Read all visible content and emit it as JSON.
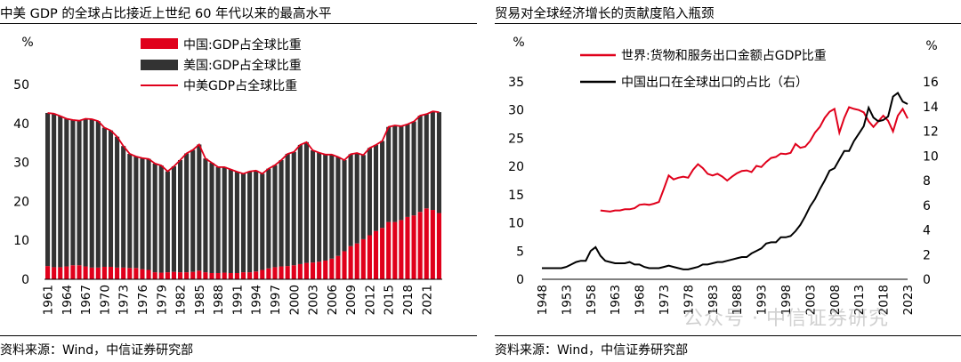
{
  "watermark": "公众号 · 中信证券研究",
  "chart_data": [
    {
      "type": "bar",
      "title": "中美 GDP 的全球占比接近上世纪 60 年代以来的最高水平",
      "source": "资料来源：Wind，中信证券研究部",
      "ylabel": "%",
      "ylim": [
        0,
        50
      ],
      "yticks": [
        0,
        10,
        20,
        30,
        40,
        50
      ],
      "xticks": [
        "1961",
        "1964",
        "1967",
        "1970",
        "1973",
        "1976",
        "1979",
        "1982",
        "1985",
        "1988",
        "1991",
        "1994",
        "1997",
        "2000",
        "2003",
        "2006",
        "2009",
        "2012",
        "2015",
        "2018",
        "2021"
      ],
      "legend_position": "top-right",
      "colors": {
        "china": "#e0001b",
        "usa": "#333333",
        "sum": "#e0001b"
      },
      "categories": [
        1961,
        1962,
        1963,
        1964,
        1965,
        1966,
        1967,
        1968,
        1969,
        1970,
        1971,
        1972,
        1973,
        1974,
        1975,
        1976,
        1977,
        1978,
        1979,
        1980,
        1981,
        1982,
        1983,
        1984,
        1985,
        1986,
        1987,
        1988,
        1989,
        1990,
        1991,
        1992,
        1993,
        1994,
        1995,
        1996,
        1997,
        1998,
        1999,
        2000,
        2001,
        2002,
        2003,
        2004,
        2005,
        2006,
        2007,
        2008,
        2009,
        2010,
        2011,
        2012,
        2013,
        2014,
        2015,
        2016,
        2017,
        2018,
        2019,
        2020,
        2021,
        2022,
        2023
      ],
      "series": [
        {
          "name": "中国:GDP占全球比重",
          "kind": "bar",
          "values": [
            3.4,
            3.1,
            3.1,
            3.3,
            3.6,
            3.6,
            3.3,
            3.0,
            3.0,
            3.2,
            3.2,
            3.0,
            3.0,
            2.9,
            2.9,
            2.6,
            2.4,
            1.8,
            1.7,
            1.8,
            1.9,
            1.8,
            1.8,
            1.9,
            2.2,
            1.8,
            1.6,
            1.6,
            1.7,
            1.6,
            1.6,
            1.8,
            1.8,
            2.0,
            2.4,
            2.8,
            3.1,
            3.3,
            3.4,
            3.6,
            3.9,
            4.2,
            4.3,
            4.5,
            4.8,
            5.3,
            6.0,
            7.2,
            8.5,
            9.2,
            10.3,
            11.3,
            12.4,
            13.2,
            14.7,
            14.7,
            15.2,
            16.0,
            16.4,
            17.3,
            18.2,
            17.8,
            17.0
          ]
        },
        {
          "name": "美国:GDP占全球比重",
          "kind": "bar",
          "values": [
            39.3,
            39.4,
            38.8,
            37.9,
            37.3,
            37.1,
            37.9,
            38.1,
            37.6,
            35.7,
            35.0,
            33.6,
            31.2,
            29.3,
            28.6,
            28.5,
            28.5,
            27.9,
            27.5,
            25.9,
            27.1,
            28.8,
            30.5,
            31.3,
            32.4,
            29.2,
            28.3,
            27.2,
            27.1,
            26.6,
            26.0,
            25.3,
            25.9,
            25.9,
            24.7,
            25.6,
            26.2,
            27.3,
            28.8,
            29.1,
            30.6,
            31.0,
            28.8,
            28.0,
            27.2,
            26.7,
            25.4,
            23.4,
            23.6,
            23.2,
            21.6,
            22.4,
            22.1,
            22.3,
            24.4,
            24.8,
            24.1,
            23.8,
            24.1,
            24.7,
            24.2,
            25.3,
            25.9
          ]
        },
        {
          "name": "中美GDP占全球比重",
          "kind": "line",
          "values": [
            42.7,
            42.5,
            41.9,
            41.2,
            40.9,
            40.7,
            41.2,
            41.1,
            40.6,
            38.9,
            38.2,
            36.6,
            34.2,
            32.2,
            31.5,
            31.1,
            30.9,
            29.7,
            29.2,
            27.7,
            29.0,
            30.6,
            32.3,
            33.2,
            34.6,
            31.0,
            29.9,
            28.8,
            28.8,
            28.2,
            27.6,
            27.1,
            27.7,
            27.9,
            27.1,
            28.4,
            29.3,
            30.6,
            32.2,
            32.7,
            34.5,
            35.2,
            33.1,
            32.5,
            32.0,
            32.0,
            31.4,
            30.6,
            32.1,
            32.4,
            31.9,
            33.7,
            34.5,
            35.5,
            39.1,
            39.5,
            39.3,
            39.8,
            40.5,
            42.0,
            42.4,
            43.1,
            42.9
          ]
        }
      ]
    },
    {
      "type": "line",
      "title": "贸易对全球经济增长的贡献度陷入瓶颈",
      "source": "资料来源：Wind，中信证券研究部",
      "ylabel_left": "%",
      "ylabel_right": "%",
      "ylim_left": [
        0,
        35
      ],
      "ylim_right": [
        0,
        16
      ],
      "yticks_left": [
        0,
        5,
        10,
        15,
        20,
        25,
        30,
        35
      ],
      "yticks_right": [
        0,
        2,
        4,
        6,
        8,
        10,
        12,
        14,
        16
      ],
      "xlim": [
        1948,
        2023
      ],
      "xticks": [
        1948,
        1953,
        1958,
        1963,
        1968,
        1973,
        1978,
        1983,
        1988,
        1993,
        1998,
        2003,
        2008,
        2013,
        2018,
        2023
      ],
      "legend_position": "top-left",
      "colors": {
        "world": "#e0001b",
        "china": "#000000"
      },
      "series": [
        {
          "name": "世界:货物和服务出口金额占GDP比重",
          "axis": "left",
          "x": [
            1960,
            1962,
            1963,
            1964,
            1965,
            1966,
            1967,
            1968,
            1969,
            1970,
            1971,
            1972,
            1973,
            1974,
            1975,
            1976,
            1977,
            1978,
            1979,
            1980,
            1981,
            1982,
            1983,
            1984,
            1985,
            1986,
            1987,
            1988,
            1989,
            1990,
            1991,
            1992,
            1993,
            1994,
            1995,
            1996,
            1997,
            1998,
            1999,
            2000,
            2001,
            2002,
            2003,
            2004,
            2005,
            2006,
            2007,
            2008,
            2009,
            2010,
            2011,
            2012,
            2013,
            2014,
            2015,
            2016,
            2017,
            2018,
            2019,
            2020,
            2021,
            2022,
            2023
          ],
          "y": [
            12.2,
            12.0,
            12.2,
            12.2,
            12.4,
            12.4,
            12.6,
            13.2,
            13.3,
            13.2,
            13.4,
            13.7,
            16.0,
            18.4,
            17.7,
            18.0,
            18.2,
            18.0,
            19.4,
            20.4,
            19.7,
            18.7,
            18.4,
            18.7,
            18.2,
            17.5,
            18.2,
            18.8,
            19.2,
            19.3,
            19.0,
            20.1,
            19.9,
            20.8,
            21.5,
            21.7,
            22.3,
            22.2,
            22.4,
            24.0,
            23.3,
            23.5,
            24.5,
            26.0,
            27.0,
            28.6,
            29.7,
            30.2,
            26.0,
            28.6,
            30.5,
            30.2,
            30.0,
            29.6,
            28.0,
            27.0,
            28.0,
            29.0,
            28.1,
            26.2,
            29.0,
            30.2,
            28.5
          ]
        },
        {
          "name": "中国出口在全球出口的占比（右）",
          "axis": "right",
          "x": [
            1948,
            1949,
            1950,
            1951,
            1952,
            1953,
            1954,
            1955,
            1956,
            1957,
            1958,
            1959,
            1960,
            1961,
            1962,
            1963,
            1964,
            1965,
            1966,
            1967,
            1968,
            1969,
            1970,
            1971,
            1972,
            1973,
            1974,
            1975,
            1976,
            1977,
            1978,
            1979,
            1980,
            1981,
            1982,
            1983,
            1984,
            1985,
            1986,
            1987,
            1988,
            1989,
            1990,
            1991,
            1992,
            1993,
            1994,
            1995,
            1996,
            1997,
            1998,
            1999,
            2000,
            2001,
            2002,
            2003,
            2004,
            2005,
            2006,
            2007,
            2008,
            2009,
            2010,
            2011,
            2012,
            2013,
            2014,
            2015,
            2016,
            2017,
            2018,
            2019,
            2020,
            2021,
            2022,
            2023
          ],
          "y": [
            0.9,
            0.9,
            0.9,
            0.9,
            0.9,
            1.0,
            1.2,
            1.4,
            1.5,
            1.5,
            2.3,
            2.6,
            1.9,
            1.5,
            1.4,
            1.3,
            1.3,
            1.3,
            1.4,
            1.2,
            1.2,
            1.0,
            0.9,
            0.9,
            0.9,
            1.0,
            1.1,
            1.0,
            0.9,
            0.8,
            0.8,
            0.9,
            1.0,
            1.2,
            1.2,
            1.3,
            1.4,
            1.4,
            1.5,
            1.6,
            1.7,
            1.8,
            1.8,
            2.1,
            2.3,
            2.5,
            2.9,
            3.0,
            3.0,
            3.4,
            3.4,
            3.5,
            3.9,
            4.4,
            5.1,
            5.9,
            6.5,
            7.3,
            8.0,
            8.8,
            9.0,
            9.7,
            10.4,
            10.4,
            11.2,
            11.8,
            12.4,
            13.9,
            13.1,
            12.8,
            12.9,
            13.2,
            14.8,
            15.1,
            14.4,
            14.2
          ]
        }
      ]
    }
  ]
}
